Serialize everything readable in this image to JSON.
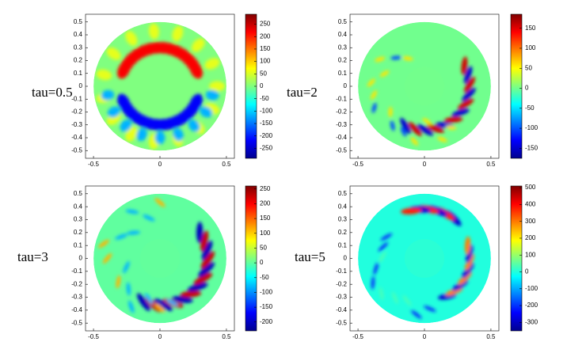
{
  "chart_data": [
    {
      "type": "heatmap",
      "title": "tau=0.5",
      "xlim": [
        -0.56,
        0.56
      ],
      "ylim": [
        -0.56,
        0.56
      ],
      "xticks": [
        -0.5,
        0,
        0.5
      ],
      "yticks": [
        -0.5,
        -0.4,
        -0.3,
        -0.2,
        -0.1,
        0,
        0.1,
        0.2,
        0.3,
        0.4,
        0.5
      ],
      "zlim": [
        -290,
        290
      ],
      "zticks": [
        -250,
        -200,
        -150,
        -100,
        -50,
        0,
        50,
        100,
        150,
        200,
        250
      ]
    },
    {
      "type": "heatmap",
      "title": "tau=2",
      "xlim": [
        -0.56,
        0.56
      ],
      "ylim": [
        -0.56,
        0.56
      ],
      "xticks": [
        -0.5,
        0,
        0.5
      ],
      "yticks": [
        -0.5,
        -0.4,
        -0.3,
        -0.2,
        -0.1,
        0,
        0.1,
        0.2,
        0.3,
        0.4,
        0.5
      ],
      "zlim": [
        -175,
        185
      ],
      "zticks": [
        -150,
        -100,
        -50,
        0,
        50,
        100,
        150
      ]
    },
    {
      "type": "heatmap",
      "title": "tau=3",
      "xlim": [
        -0.56,
        0.56
      ],
      "ylim": [
        -0.56,
        0.56
      ],
      "xticks": [
        -0.5,
        0,
        0.5
      ],
      "yticks": [
        -0.5,
        -0.4,
        -0.3,
        -0.2,
        -0.1,
        0,
        0.1,
        0.2,
        0.3,
        0.4,
        0.5
      ],
      "zlim": [
        -230,
        260
      ],
      "zticks": [
        -200,
        -150,
        -100,
        -50,
        0,
        50,
        100,
        150,
        200,
        250
      ]
    },
    {
      "type": "heatmap",
      "title": "tau=5",
      "xlim": [
        -0.56,
        0.56
      ],
      "ylim": [
        -0.56,
        0.56
      ],
      "xticks": [
        -0.5,
        0,
        0.5
      ],
      "yticks": [
        -0.5,
        -0.4,
        -0.3,
        -0.2,
        -0.1,
        0,
        0.1,
        0.2,
        0.3,
        0.4,
        0.5
      ],
      "zlim": [
        -350,
        510
      ],
      "zticks": [
        -300,
        -200,
        -100,
        0,
        100,
        200,
        300,
        400,
        500
      ]
    }
  ]
}
